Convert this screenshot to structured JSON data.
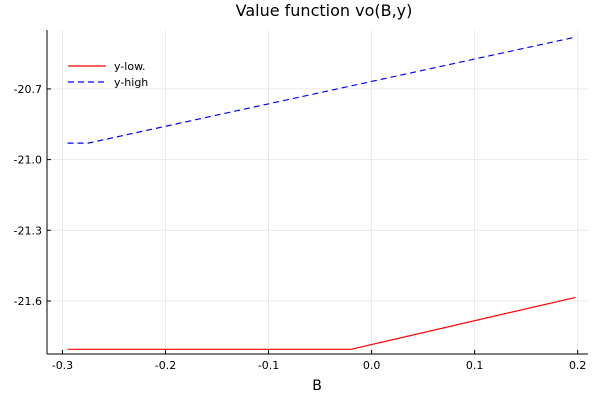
{
  "chart_data": {
    "type": "line",
    "title": "Value function vo(B,y)",
    "xlabel": "B",
    "ylabel": "",
    "xlim": [
      -0.315,
      0.21
    ],
    "ylim": [
      -21.825,
      -20.45
    ],
    "xticks": [
      -0.3,
      -0.2,
      -0.1,
      0.0,
      0.1,
      0.2
    ],
    "xtick_labels": [
      "-0.3",
      "-0.2",
      "-0.1",
      "0.0",
      "0.1",
      "0.2"
    ],
    "yticks": [
      -20.7,
      -21.0,
      -21.3,
      -21.6
    ],
    "ytick_labels": [
      "-20.7",
      "-21.0",
      "-21.3",
      "-21.6"
    ],
    "grid": true,
    "legend_position": "top-left",
    "series": [
      {
        "name": "y-low.",
        "color": "#ff0000",
        "dash": "solid",
        "x": [
          -0.295,
          -0.02,
          0.198
        ],
        "y": [
          -21.805,
          -21.805,
          -21.585
        ]
      },
      {
        "name": "y-high",
        "color": "#0000ff",
        "dash": "dashed",
        "x": [
          -0.295,
          -0.275,
          0.198
        ],
        "y": [
          -20.93,
          -20.93,
          -20.48
        ]
      }
    ]
  }
}
